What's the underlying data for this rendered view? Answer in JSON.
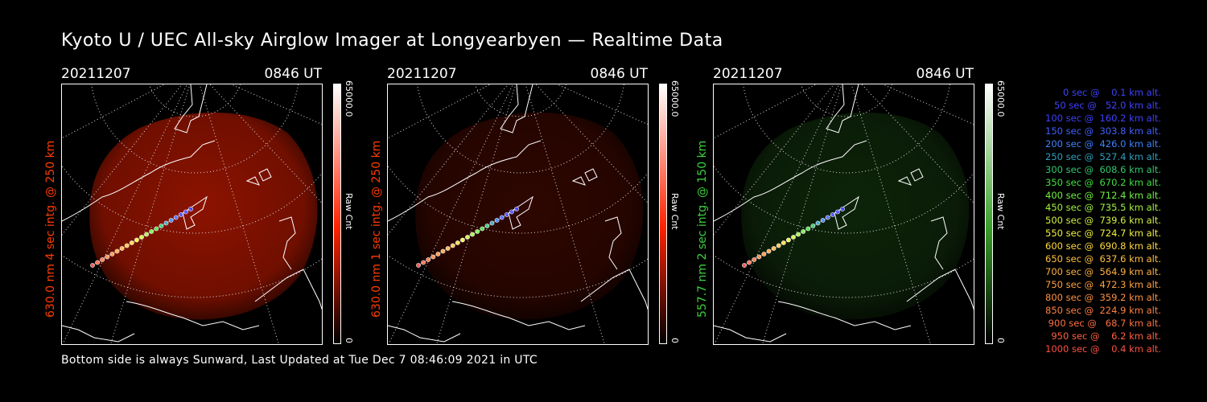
{
  "title": "Kyoto U / UEC All-sky Airglow Imager at Longyearbyen — Realtime Data",
  "footer": "Bottom side is always Sunward, Last Updated at Tue Dec  7 08:46:09 2021 in UTC",
  "panels": [
    {
      "date": "20211207",
      "time": "0846 UT",
      "ylabel": "630.0 nm 4 sec intg. @ 250 km",
      "label_color": "#ff3c00",
      "cb_max": "65000.0",
      "cb_min": "0",
      "cb_label": "Raw Cnt",
      "color": "#ff2200",
      "intensity": 0.55
    },
    {
      "date": "20211207",
      "time": "0846 UT",
      "ylabel": "630.0 nm 1 sec intg. @ 250 km",
      "label_color": "#ff3c00",
      "cb_max": "65000.0",
      "cb_min": "0",
      "cb_label": "Raw Cnt",
      "color": "#ff2200",
      "intensity": 0.18
    },
    {
      "date": "20211207",
      "time": "0846 UT",
      "ylabel": "557.7 nm 2 sec intg. @ 150 km",
      "label_color": "#3cd23c",
      "cb_max": "65000.0",
      "cb_min": "0",
      "cb_label": "Raw Cnt",
      "color": "#3aa02a",
      "intensity": 0.22
    }
  ],
  "legend": [
    {
      "text": "   0 sec @    0.1 km alt.",
      "color": "#4040ff"
    },
    {
      "text": "  50 sec @   52.0 km alt.",
      "color": "#4040ff"
    },
    {
      "text": " 100 sec @  160.2 km alt.",
      "color": "#4040ff"
    },
    {
      "text": " 150 sec @  303.8 km alt.",
      "color": "#4060ff"
    },
    {
      "text": " 200 sec @  426.0 km alt.",
      "color": "#3c82ff"
    },
    {
      "text": " 250 sec @  527.4 km alt.",
      "color": "#2ea0c0"
    },
    {
      "text": " 300 sec @  608.6 km alt.",
      "color": "#30c870"
    },
    {
      "text": " 350 sec @  670.2 km alt.",
      "color": "#40e040"
    },
    {
      "text": " 400 sec @  712.4 km alt.",
      "color": "#70f040"
    },
    {
      "text": " 450 sec @  735.5 km alt.",
      "color": "#a0f040"
    },
    {
      "text": " 500 sec @  739.6 km alt.",
      "color": "#d0f040"
    },
    {
      "text": " 550 sec @  724.7 km alt.",
      "color": "#f0f040"
    },
    {
      "text": " 600 sec @  690.8 km alt.",
      "color": "#ffd840"
    },
    {
      "text": " 650 sec @  637.6 km alt.",
      "color": "#ffc040"
    },
    {
      "text": " 700 sec @  564.9 km alt.",
      "color": "#ffb040"
    },
    {
      "text": " 750 sec @  472.3 km alt.",
      "color": "#ffa040"
    },
    {
      "text": " 800 sec @  359.2 km alt.",
      "color": "#ff9040"
    },
    {
      "text": " 850 sec @  224.9 km alt.",
      "color": "#ff8040"
    },
    {
      "text": " 900 sec @   68.7 km alt.",
      "color": "#ff7040"
    },
    {
      "text": " 950 sec @    6.2 km alt.",
      "color": "#ff6040"
    },
    {
      "text": "1000 sec @    0.4 km alt.",
      "color": "#ff5040"
    }
  ]
}
